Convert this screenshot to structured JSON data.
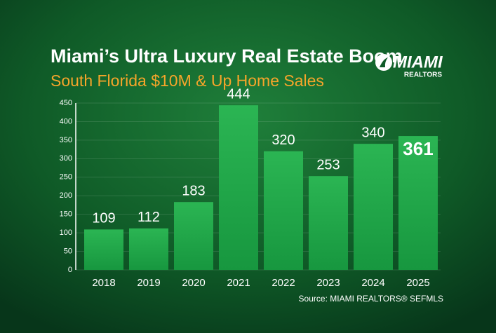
{
  "chart_data": {
    "type": "bar",
    "title": "Miami’s Ultra Luxury Real Estate Boom",
    "subtitle": "South Florida $10M & Up Home Sales",
    "logo": {
      "text": "MIAMI",
      "subtext": "REALTORS"
    },
    "source": "Source: MIAMI REALTORS® SEFMLS",
    "categories": [
      "2018",
      "2019",
      "2020",
      "2021",
      "2022",
      "2023",
      "2024",
      "2025"
    ],
    "values": [
      109,
      112,
      183,
      444,
      320,
      253,
      340,
      361
    ],
    "highlight": "2025",
    "color": "#1fa447",
    "ylim": [
      0,
      450
    ],
    "yticks": [
      0,
      50,
      100,
      150,
      200,
      250,
      300,
      350,
      400,
      450
    ],
    "grid": true
  }
}
